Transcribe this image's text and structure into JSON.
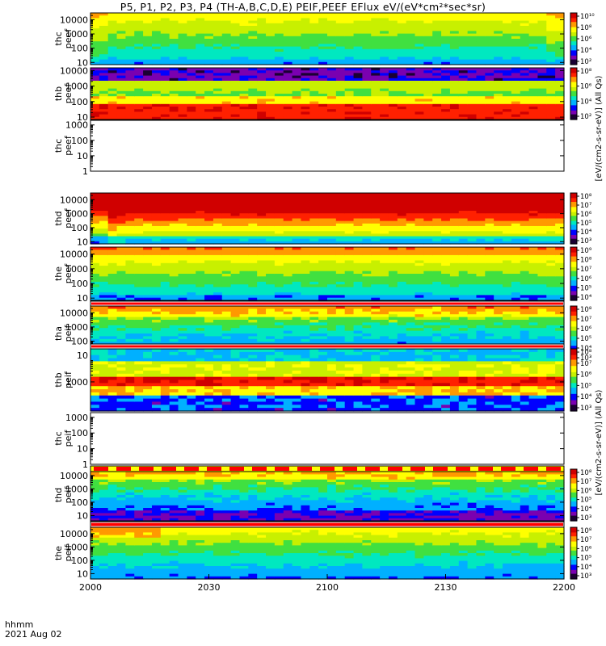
{
  "title": "P5, P1, P2, P3, P4 (TH-A,B,C,D,E) PEIF,PEEF EFlux eV/(eV*cm²*sec*sr)",
  "time_axis": {
    "unit_label": "hhmm",
    "date_label": "2021 Aug 02",
    "ticks": [
      "2000",
      "2030",
      "2100",
      "2130",
      "2200"
    ]
  },
  "colorbar_units": {
    "peef": "[eV/(cm2-s-sr-eV)] (All Qs)",
    "peif": "[eV/(cm2-s-sr-eV)] (All Qs)"
  },
  "palette": [
    "#1a0033",
    "#7a00b0",
    "#0000ff",
    "#00b0ff",
    "#00e8c0",
    "#40e040",
    "#c8f000",
    "#ffff00",
    "#ff9900",
    "#ff2000",
    "#d00000"
  ],
  "chart_data": [
    {
      "type": "heatmap",
      "id": "thc-peef-top",
      "ylabel": [
        "thc",
        "peef"
      ],
      "yscale": "log",
      "yticks": [
        "10",
        "100",
        "1000",
        "10000"
      ],
      "ylim": [
        7,
        30000
      ],
      "colorbar_ticks": [
        "10²",
        "10⁴",
        "10⁶",
        "10⁸",
        "10¹⁰"
      ],
      "pattern": "top",
      "has_data": true
    },
    {
      "type": "heatmap",
      "id": "thb-peef",
      "ylabel": [
        "thb",
        "peef"
      ],
      "yscale": "log",
      "yticks": [
        "10",
        "100",
        "1000",
        "10000"
      ],
      "ylim": [
        7,
        15000
      ],
      "colorbar_ticks": [
        "10²",
        "10⁴",
        "10⁶",
        "10⁸"
      ],
      "pattern": "thb_peef",
      "has_data": true
    },
    {
      "type": "heatmap",
      "id": "thc-peef",
      "ylabel": [
        "thc",
        "peef"
      ],
      "yscale": "log",
      "yticks": [
        "1",
        "10",
        "100",
        "1000"
      ],
      "ylim": [
        1,
        2000
      ],
      "colorbar_ticks": [],
      "pattern": "empty",
      "has_data": false
    },
    {
      "type": "heatmap",
      "id": "thd-peef",
      "ylabel": [
        "thd",
        "peef"
      ],
      "yscale": "log",
      "yticks": [
        "10",
        "100",
        "1000",
        "10000"
      ],
      "ylim": [
        7,
        30000
      ],
      "colorbar_ticks": [
        "10³",
        "10⁴",
        "10⁵",
        "10⁶",
        "10⁷",
        "10⁸"
      ],
      "pattern": "thd_peef",
      "has_data": true
    },
    {
      "type": "heatmap",
      "id": "the-peef",
      "ylabel": [
        "the",
        "peef"
      ],
      "yscale": "log",
      "yticks": [
        "10",
        "100",
        "1000",
        "10000"
      ],
      "ylim": [
        7,
        30000
      ],
      "colorbar_ticks": [
        "10⁴",
        "10⁵",
        "10⁶",
        "10⁷",
        "10⁸",
        "10⁹"
      ],
      "pattern": "the_peef",
      "has_data": true
    },
    {
      "type": "heatmap",
      "id": "tha-peif",
      "ylabel": [
        "tha",
        "peif"
      ],
      "yscale": "log",
      "yticks": [
        "10",
        "100",
        "1000",
        "10000"
      ],
      "ylim": [
        4,
        30000
      ],
      "colorbar_ticks": [
        "10³",
        "10⁴",
        "10⁵",
        "10⁶",
        "10⁷",
        "10⁸"
      ],
      "pattern": "ion_low",
      "has_data": true
    },
    {
      "type": "heatmap",
      "id": "thb-peif",
      "ylabel": [
        "thb",
        "peif"
      ],
      "yscale": "log",
      "yticks": [
        "1000"
      ],
      "ylim": [
        50,
        30000
      ],
      "colorbar_ticks": [
        "10³",
        "10⁴",
        "10⁵",
        "10⁶",
        "10⁷",
        "10⁸"
      ],
      "pattern": "thb_peif",
      "has_data": true
    },
    {
      "type": "heatmap",
      "id": "thc-peif",
      "ylabel": [
        "thc",
        "peif"
      ],
      "yscale": "log",
      "yticks": [
        "1",
        "10",
        "100",
        "1000"
      ],
      "ylim": [
        1,
        2000
      ],
      "colorbar_ticks": [],
      "pattern": "empty",
      "has_data": false
    },
    {
      "type": "heatmap",
      "id": "thd-peif",
      "ylabel": [
        "thd",
        "peif"
      ],
      "yscale": "log",
      "yticks": [
        "10",
        "100",
        "1000",
        "10000"
      ],
      "ylim": [
        4,
        30000
      ],
      "colorbar_ticks": [
        "10³",
        "10⁴",
        "10⁵",
        "10⁶",
        "10⁷",
        "10⁸"
      ],
      "pattern": "ion_low",
      "has_data": true
    },
    {
      "type": "heatmap",
      "id": "the-peif",
      "ylabel": [
        "the",
        "peif"
      ],
      "yscale": "log",
      "yticks": [
        "10",
        "100",
        "1000",
        "10000"
      ],
      "ylim": [
        4,
        30000
      ],
      "colorbar_ticks": [
        "10³",
        "10⁴",
        "10⁵",
        "10⁶",
        "10⁷",
        "10⁸"
      ],
      "pattern": "ion_mid",
      "has_data": true
    }
  ]
}
